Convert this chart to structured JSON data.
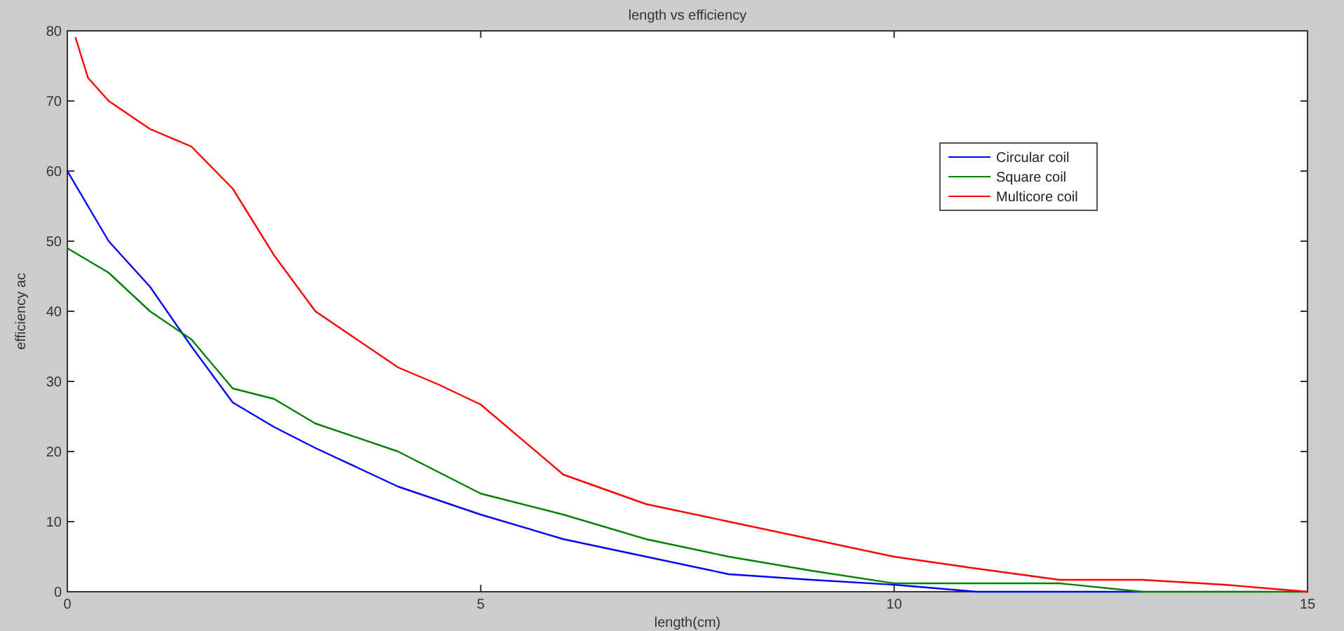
{
  "chart_data": {
    "type": "line",
    "title": "length vs efficiency",
    "xlabel": "length(cm)",
    "ylabel": "efficiency ac",
    "xlim": [
      0,
      15
    ],
    "xticks": [
      0,
      5,
      10,
      15
    ],
    "ylim": [
      0,
      80
    ],
    "yticks": [
      0,
      10,
      20,
      30,
      40,
      50,
      60,
      70,
      80
    ],
    "grid": false,
    "legend": "top right",
    "series": [
      {
        "name": "Circular coil",
        "color": "#0000ff",
        "x": [
          0,
          0.25,
          0.5,
          1,
          1.5,
          2,
          2.5,
          3,
          4,
          5,
          6,
          7,
          8,
          9,
          10,
          11,
          12,
          13
        ],
        "values": [
          60,
          55,
          50,
          43.5,
          35,
          27,
          23.5,
          20.5,
          15,
          11,
          7.5,
          5,
          2.5,
          1.7,
          1,
          0,
          0,
          0
        ]
      },
      {
        "name": "Square coil",
        "color": "#008000",
        "x": [
          0,
          0.5,
          1,
          1.5,
          2,
          2.5,
          3,
          4,
          5,
          6,
          7,
          8,
          9,
          10,
          11,
          12,
          13,
          14,
          15
        ],
        "values": [
          49,
          45.5,
          40,
          36,
          29,
          27.5,
          24,
          20,
          14,
          11,
          7.5,
          5,
          3,
          1.2,
          1.2,
          1.2,
          0,
          0,
          0
        ]
      },
      {
        "name": "Multicore coil",
        "color": "#ff0000",
        "x": [
          0.1,
          0.25,
          0.5,
          1,
          1.5,
          2,
          2.5,
          3,
          4,
          4.5,
          5,
          6,
          7,
          8,
          9,
          10,
          11,
          12,
          13,
          14,
          15
        ],
        "values": [
          79,
          73.3,
          70,
          66,
          63.5,
          57.5,
          48,
          40,
          32,
          29.5,
          26.7,
          16.7,
          12.5,
          10,
          7.5,
          5,
          3.3,
          1.7,
          1.7,
          1,
          0
        ]
      }
    ]
  }
}
